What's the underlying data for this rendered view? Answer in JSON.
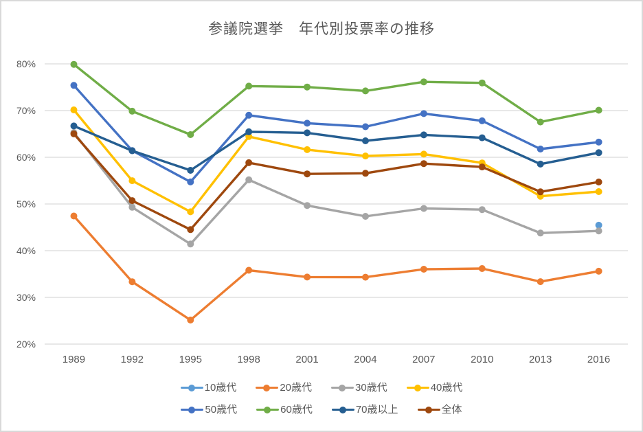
{
  "chart_data": {
    "type": "line",
    "title": "参議院選挙　年代別投票率の推移",
    "categories": [
      "1989",
      "1992",
      "1995",
      "1998",
      "2001",
      "2004",
      "2007",
      "2010",
      "2013",
      "2016"
    ],
    "series": [
      {
        "key": "10s",
        "name": "10歳代",
        "color": "#5B9BD5",
        "values": [
          null,
          null,
          null,
          null,
          null,
          null,
          null,
          null,
          null,
          45.45
        ]
      },
      {
        "key": "20s",
        "name": "20歳代",
        "color": "#ED7D31",
        "values": [
          47.42,
          33.35,
          25.15,
          35.81,
          34.35,
          34.33,
          36.03,
          36.17,
          33.37,
          35.6
        ]
      },
      {
        "key": "30s",
        "name": "30歳代",
        "color": "#A5A5A5",
        "values": [
          65.29,
          49.3,
          41.43,
          55.17,
          49.68,
          47.36,
          49.05,
          48.79,
          43.78,
          44.24
        ]
      },
      {
        "key": "40s",
        "name": "40歳代",
        "color": "#FFC000",
        "values": [
          70.15,
          54.99,
          48.32,
          64.44,
          61.63,
          60.28,
          60.68,
          58.8,
          51.66,
          52.64
        ]
      },
      {
        "key": "50s",
        "name": "50歳代",
        "color": "#4472C4",
        "values": [
          75.4,
          61.43,
          54.72,
          69.0,
          67.3,
          66.54,
          69.35,
          67.81,
          61.77,
          63.25
        ]
      },
      {
        "key": "60s",
        "name": "60歳代",
        "color": "#70AD47",
        "values": [
          79.89,
          69.87,
          64.86,
          75.24,
          75.05,
          74.21,
          76.15,
          75.93,
          67.56,
          70.07
        ]
      },
      {
        "key": "70plus",
        "name": "70歳以上",
        "color": "#255E91",
        "values": [
          66.71,
          61.39,
          57.21,
          65.46,
          65.24,
          63.53,
          64.79,
          64.17,
          58.54,
          60.98
        ]
      },
      {
        "key": "all",
        "name": "全体",
        "color": "#9E480E",
        "values": [
          65.02,
          50.72,
          44.52,
          58.84,
          56.44,
          56.57,
          58.64,
          57.92,
          52.61,
          54.7
        ]
      }
    ],
    "y_axis": {
      "min": 20,
      "max": 80,
      "ticks": [
        {
          "value": 80,
          "label": "80%"
        },
        {
          "value": 70,
          "label": "70%"
        },
        {
          "value": 60,
          "label": "60%"
        },
        {
          "value": 50,
          "label": "50%"
        },
        {
          "value": 40,
          "label": "40%"
        },
        {
          "value": 30,
          "label": "30%"
        },
        {
          "value": 20,
          "label": "20%"
        }
      ]
    },
    "grid": true,
    "legend_position": "bottom",
    "legend_rows_split": 4
  },
  "colors": {
    "text": "#595959",
    "grid": "#D9D9D9",
    "border": "#D9D9D9",
    "background": "#FFFFFF"
  }
}
